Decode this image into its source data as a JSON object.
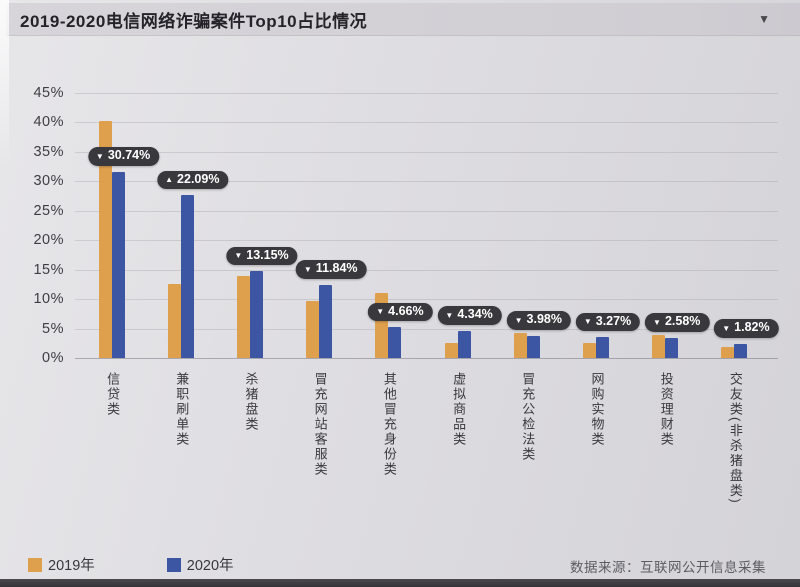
{
  "header": {
    "title": "2019-2020电信网络诈骗案件Top10占比情况",
    "dropdown_icon": "▼"
  },
  "axis": {
    "y_ticks": [
      "45%",
      "40%",
      "35%",
      "30%",
      "25%",
      "20%",
      "15%",
      "10%",
      "5%",
      "0%"
    ],
    "y_max": 45
  },
  "legend": [
    {
      "label": "2019年",
      "color": "#DFA04D"
    },
    {
      "label": "2020年",
      "color": "#3C56A4"
    }
  ],
  "source_note": "数据来源：互联网公开信息采集",
  "colors": {
    "bar_2019": "#DFA04D",
    "bar_2020": "#3C56A4",
    "pill_bg": "#39383C",
    "pill_text": "#FFFFFF",
    "background": "#DEDDE1",
    "header_band": "#D0CED3"
  },
  "chart_data": {
    "type": "bar",
    "title": "2019-2020电信网络诈骗案件Top10占比情况",
    "categories": [
      "信贷类",
      "兼职刷单类",
      "杀猪盘类",
      "冒充网站客服类",
      "其他冒充身份类",
      "虚拟商品类",
      "冒充公检法类",
      "网购实物类",
      "投资理财类",
      "交友类(非杀猪盘类)"
    ],
    "series": [
      {
        "name": "2019年",
        "color": "#DFA04D",
        "values": [
          40.3,
          12.6,
          14.0,
          9.6,
          11.1,
          2.6,
          4.2,
          2.5,
          3.9,
          1.8
        ]
      },
      {
        "name": "2020年",
        "color": "#3C56A4",
        "values": [
          31.6,
          27.6,
          14.7,
          12.4,
          5.2,
          4.6,
          3.7,
          3.5,
          3.4,
          2.4
        ]
      }
    ],
    "point_labels": [
      {
        "arrow": "▼",
        "value": "30.74%"
      },
      {
        "arrow": "▲",
        "value": "22.09%"
      },
      {
        "arrow": "▼",
        "value": "13.15%"
      },
      {
        "arrow": "▼",
        "value": "11.84%"
      },
      {
        "arrow": "▼",
        "value": "4.66%"
      },
      {
        "arrow": "▼",
        "value": "4.34%"
      },
      {
        "arrow": "▼",
        "value": "3.98%"
      },
      {
        "arrow": "▼",
        "value": "3.27%"
      },
      {
        "arrow": "▼",
        "value": "2.58%"
      },
      {
        "arrow": "▼",
        "value": "1.82%"
      }
    ],
    "ylim": [
      0,
      45
    ],
    "grid": true,
    "legend_position": "bottom-left"
  }
}
